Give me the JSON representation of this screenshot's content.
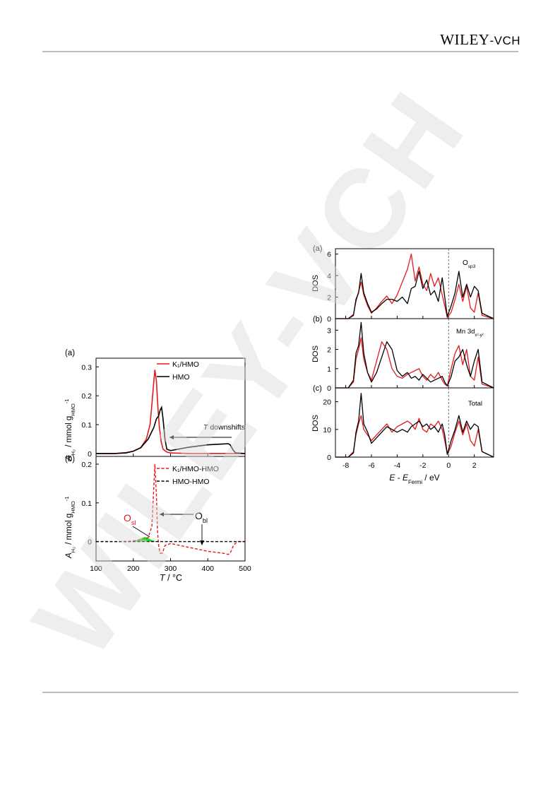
{
  "header": {
    "publisher_main": "WILEY",
    "publisher_suffix": "-VCH"
  },
  "watermark": {
    "text": "WILEY-VCH",
    "color": "#d9d9d9"
  },
  "figures": {
    "tpr": {
      "panel_a_label": "(a)",
      "panel_b_label": "(b)",
      "ylabel_prefix": "A",
      "ylabel_sub": "H₂",
      "ylabel_unit": " / mmol g",
      "ylabel_unit_sub": "HMO",
      "ylabel_sup": "-1",
      "xlabel_italic": "T",
      "xlabel_rest": " / °C",
      "annotation_downshift_italic": "T",
      "annotation_downshift_rest": " downshifts",
      "annotation_osl_main": "O",
      "annotation_osl_sub": "sl",
      "annotation_obl_main": "O",
      "annotation_obl_sub": "bl",
      "legend_a": [
        "K₁/HMO",
        "HMO"
      ],
      "legend_b": [
        "K₁/HMO-HMO",
        "HMO-HMO"
      ],
      "colors": {
        "k1": "#e3191b",
        "hmo": "#000000",
        "fill": "#22dd22"
      }
    },
    "dos": {
      "panel_labels": [
        "(a)",
        "(b)",
        "(c)"
      ],
      "tags": [
        "O",
        "Mn 3d",
        "Total"
      ],
      "tag_sub": [
        "sp3",
        "x²-y²"
      ],
      "ylabel": "DOS",
      "xlabel_main": "E - E",
      "xlabel_sub": "Fermi",
      "xlabel_unit": " / eV",
      "colors": {
        "red": "#e3191b",
        "black": "#000000"
      }
    }
  },
  "chart_data": [
    {
      "type": "line",
      "title": "",
      "panel": "(a)",
      "xlabel": "T / °C",
      "ylabel": "A_H2 / mmol g_HMO^-1",
      "xlim": [
        100,
        500
      ],
      "ylim": [
        -0.01,
        0.33
      ],
      "yticks": [
        0,
        0.1,
        0.2,
        0.3
      ],
      "series": [
        {
          "name": "K₁/HMO",
          "color": "#e3191b",
          "x": [
            100,
            150,
            180,
            200,
            220,
            235,
            245,
            250,
            255,
            258,
            262,
            266,
            270,
            275,
            280,
            290,
            300,
            350,
            400,
            450,
            470,
            500
          ],
          "y": [
            0,
            0,
            0.003,
            0.008,
            0.02,
            0.05,
            0.1,
            0.17,
            0.25,
            0.29,
            0.25,
            0.16,
            0.09,
            0.04,
            0.015,
            0.005,
            0.002,
            0,
            0,
            0,
            0,
            0
          ]
        },
        {
          "name": "HMO",
          "color": "#000000",
          "x": [
            100,
            150,
            180,
            200,
            220,
            240,
            255,
            262,
            268,
            272,
            276,
            280,
            285,
            290,
            300,
            320,
            350,
            400,
            440,
            455,
            460,
            468,
            475,
            500
          ],
          "y": [
            0,
            0,
            0.002,
            0.008,
            0.02,
            0.05,
            0.09,
            0.12,
            0.13,
            0.15,
            0.16,
            0.12,
            0.05,
            0.015,
            0.01,
            0.015,
            0.022,
            0.03,
            0.033,
            0.034,
            0.03,
            0.012,
            0.002,
            0
          ]
        }
      ],
      "annotations": [
        "T downshifts"
      ]
    },
    {
      "type": "line",
      "title": "",
      "panel": "(b)",
      "xlabel": "T / °C",
      "ylabel": "A_H2 / mmol g_HMO^-1",
      "xlim": [
        100,
        500
      ],
      "ylim": [
        -0.05,
        0.22
      ],
      "yticks": [
        0,
        0.1,
        0.2
      ],
      "xticks": [
        100,
        200,
        300,
        400,
        500
      ],
      "series": [
        {
          "name": "K₁/HMO-HMO",
          "color": "#e3191b",
          "style": "dashed",
          "x": [
            100,
            180,
            200,
            220,
            240,
            250,
            255,
            258,
            262,
            265,
            268,
            272,
            278,
            285,
            300,
            350,
            400,
            440,
            455,
            460,
            470,
            480,
            500
          ],
          "y": [
            0,
            0,
            0.002,
            0.005,
            0.01,
            0.04,
            0.14,
            0.2,
            0.12,
            0.03,
            -0.01,
            -0.03,
            -0.03,
            -0.01,
            -0.005,
            -0.015,
            -0.025,
            -0.03,
            -0.033,
            -0.03,
            -0.008,
            0,
            0
          ]
        },
        {
          "name": "HMO-HMO",
          "color": "#000000",
          "style": "dashed",
          "x": [
            100,
            500
          ],
          "y": [
            0,
            0
          ]
        }
      ],
      "annotations": [
        "O_sl",
        "O_bl"
      ]
    },
    {
      "type": "line",
      "title": "",
      "panel": "(a)",
      "label": "O_sp3",
      "ylabel": "DOS",
      "xlim": [
        -8.8,
        3.5
      ],
      "ylim": [
        0,
        6.5
      ],
      "yticks": [
        0,
        2,
        4,
        6
      ],
      "series": [
        {
          "color": "#e3191b",
          "x": [
            -8.8,
            -7.8,
            -7.4,
            -7.2,
            -7.0,
            -6.8,
            -6.6,
            -6.3,
            -6.0,
            -5.6,
            -5.2,
            -4.8,
            -4.4,
            -4.0,
            -3.6,
            -3.2,
            -2.9,
            -2.6,
            -2.3,
            -2.0,
            -1.7,
            -1.4,
            -1.1,
            -0.8,
            -0.5,
            -0.3,
            -0.1,
            0.2,
            0.5,
            0.8,
            1.1,
            1.4,
            1.7,
            2.0,
            2.3,
            2.6,
            3.5
          ],
          "y": [
            0,
            0,
            0.4,
            1.6,
            2.5,
            3.4,
            2.2,
            1.2,
            0.5,
            1.0,
            1.6,
            2.1,
            1.4,
            2.2,
            3.4,
            4.6,
            6.0,
            3.5,
            4.8,
            3.2,
            2.6,
            4.2,
            3.0,
            3.8,
            2.2,
            1.2,
            0.1,
            0.6,
            1.8,
            3.2,
            1.6,
            3.0,
            1.0,
            0.6,
            2.4,
            0.3,
            0
          ]
        },
        {
          "color": "#000000",
          "x": [
            -8.8,
            -7.8,
            -7.4,
            -7.2,
            -7.0,
            -6.8,
            -6.6,
            -6.3,
            -6.0,
            -5.6,
            -5.2,
            -4.8,
            -4.4,
            -4.0,
            -3.6,
            -3.2,
            -2.9,
            -2.6,
            -2.3,
            -2.0,
            -1.7,
            -1.4,
            -1.1,
            -0.8,
            -0.5,
            -0.3,
            -0.1,
            0.2,
            0.5,
            0.8,
            1.1,
            1.4,
            1.7,
            2.0,
            2.3,
            2.6,
            3.5
          ],
          "y": [
            0,
            0,
            0.3,
            1.8,
            2.4,
            4.2,
            2.4,
            1.4,
            0.6,
            0.9,
            1.4,
            1.8,
            1.8,
            1.6,
            2.0,
            1.4,
            2.8,
            3.0,
            4.4,
            2.8,
            3.6,
            2.2,
            2.6,
            1.6,
            3.8,
            2.0,
            0.2,
            1.2,
            2.4,
            4.4,
            2.0,
            3.2,
            2.0,
            3.0,
            2.6,
            0.5,
            0
          ]
        }
      ]
    },
    {
      "type": "line",
      "title": "",
      "panel": "(b)",
      "label": "Mn 3d_x²-y²",
      "ylabel": "DOS",
      "xlim": [
        -8.8,
        3.5
      ],
      "ylim": [
        0,
        3.6
      ],
      "yticks": [
        0,
        1,
        2,
        3
      ],
      "series": [
        {
          "color": "#e3191b",
          "x": [
            -8.8,
            -7.8,
            -7.4,
            -7.2,
            -7.0,
            -6.8,
            -6.6,
            -6.3,
            -6.0,
            -5.6,
            -5.2,
            -4.8,
            -4.4,
            -4.0,
            -3.6,
            -3.2,
            -2.9,
            -2.6,
            -2.3,
            -2.0,
            -1.7,
            -1.4,
            -1.1,
            -0.8,
            -0.5,
            -0.3,
            -0.1,
            0.2,
            0.5,
            0.8,
            1.1,
            1.4,
            1.7,
            2.0,
            2.3,
            2.6,
            3.5
          ],
          "y": [
            0,
            0,
            0.3,
            1.5,
            2.0,
            2.6,
            1.5,
            0.8,
            0.4,
            1.4,
            2.4,
            2.0,
            1.0,
            0.6,
            0.5,
            0.7,
            0.8,
            0.9,
            1.0,
            0.6,
            0.4,
            0.7,
            0.5,
            0.8,
            0.4,
            0.2,
            0.1,
            1.0,
            1.8,
            2.2,
            1.2,
            2.0,
            0.6,
            0.4,
            1.6,
            0.2,
            0
          ]
        },
        {
          "color": "#000000",
          "x": [
            -8.8,
            -7.8,
            -7.4,
            -7.2,
            -7.0,
            -6.8,
            -6.6,
            -6.3,
            -6.0,
            -5.6,
            -5.2,
            -4.8,
            -4.4,
            -4.0,
            -3.6,
            -3.2,
            -2.9,
            -2.6,
            -2.3,
            -2.0,
            -1.7,
            -1.4,
            -1.1,
            -0.8,
            -0.5,
            -0.3,
            -0.1,
            0.2,
            0.5,
            0.8,
            1.1,
            1.4,
            1.7,
            2.0,
            2.3,
            2.6,
            3.5
          ],
          "y": [
            0,
            0,
            0.4,
            1.8,
            2.2,
            3.4,
            1.8,
            0.8,
            0.3,
            0.8,
            1.6,
            2.4,
            2.0,
            0.9,
            0.6,
            0.8,
            0.5,
            0.6,
            0.4,
            0.7,
            0.5,
            0.3,
            0.4,
            0.5,
            0.6,
            0.3,
            0.1,
            0.6,
            1.4,
            1.6,
            2.0,
            1.2,
            0.6,
            1.4,
            2.0,
            0.3,
            0
          ]
        }
      ]
    },
    {
      "type": "line",
      "title": "",
      "panel": "(c)",
      "label": "Total",
      "xlabel": "E - E_Fermi / eV",
      "ylabel": "DOS",
      "xlim": [
        -8.8,
        3.5
      ],
      "ylim": [
        0,
        25
      ],
      "yticks": [
        0,
        10,
        20
      ],
      "xticks": [
        -8,
        -6,
        -4,
        -2,
        0,
        2
      ],
      "series": [
        {
          "color": "#e3191b",
          "x": [
            -8.8,
            -7.8,
            -7.4,
            -7.2,
            -7.0,
            -6.8,
            -6.6,
            -6.3,
            -6.0,
            -5.6,
            -5.2,
            -4.8,
            -4.4,
            -4.0,
            -3.6,
            -3.2,
            -2.9,
            -2.6,
            -2.3,
            -2.0,
            -1.7,
            -1.4,
            -1.1,
            -0.8,
            -0.5,
            -0.3,
            -0.1,
            0.2,
            0.5,
            0.8,
            1.1,
            1.4,
            1.7,
            2.0,
            2.3,
            2.6,
            3.5
          ],
          "y": [
            0,
            0,
            2,
            8,
            12,
            15,
            10,
            8,
            6,
            8,
            10,
            12,
            9,
            11,
            12,
            13,
            12,
            10,
            14,
            10,
            9,
            12,
            11,
            13,
            10,
            6,
            1,
            4,
            9,
            13,
            8,
            12,
            6,
            4,
            10,
            2,
            0
          ]
        },
        {
          "color": "#000000",
          "x": [
            -8.8,
            -7.8,
            -7.4,
            -7.2,
            -7.0,
            -6.8,
            -6.6,
            -6.3,
            -6.0,
            -5.6,
            -5.2,
            -4.8,
            -4.4,
            -4.0,
            -3.6,
            -3.2,
            -2.9,
            -2.6,
            -2.3,
            -2.0,
            -1.7,
            -1.4,
            -1.1,
            -0.8,
            -0.5,
            -0.3,
            -0.1,
            0.2,
            0.5,
            0.8,
            1.1,
            1.4,
            1.7,
            2.0,
            2.3,
            2.6,
            3.5
          ],
          "y": [
            0,
            0,
            1.5,
            9,
            13,
            23,
            12,
            9,
            5,
            7,
            9,
            11,
            10,
            9,
            10,
            9,
            11,
            12,
            13,
            11,
            12,
            10,
            11,
            9,
            12,
            8,
            1,
            6,
            10,
            15,
            9,
            13,
            10,
            12,
            11,
            2,
            0
          ]
        }
      ]
    }
  ]
}
